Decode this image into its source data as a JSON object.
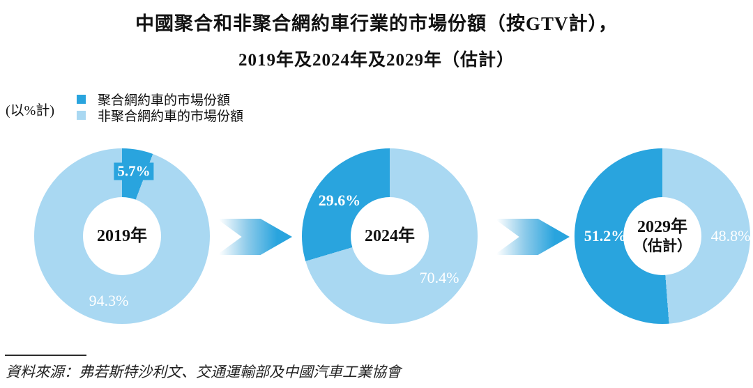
{
  "title": {
    "line1": "中國聚合和非聚合網約車行業的市場份額（按GTV計），",
    "line2": "2019年及2024年及2029年（估計）"
  },
  "legend": {
    "unit_note": "(以%計)",
    "items": [
      {
        "label": "聚合網約車的市場份額",
        "color": "#29A4DE"
      },
      {
        "label": "非聚合網約車的市場份額",
        "color": "#A9D8F2"
      }
    ]
  },
  "chart_data": {
    "type": "pie",
    "subtype": "donut-series",
    "title": "中國聚合和非聚合網約車行業的市場份額（按GTV計），2019年及2024年及2029年（估計）",
    "unit": "%",
    "legend_position": "top-left",
    "series_names": [
      "聚合網約車的市場份額",
      "非聚合網約車的市場份額"
    ],
    "colors": {
      "aggregated": "#29A4DE",
      "non_aggregated": "#A9D8F2"
    },
    "donuts": [
      {
        "center_label_line1": "2019年",
        "center_label_line2": "",
        "aggregated_value": 5.7,
        "non_aggregated_value": 94.3,
        "aggregated_label": "5.7%",
        "non_aggregated_label": "94.3%",
        "dark_slice_position": "start"
      },
      {
        "center_label_line1": "2024年",
        "center_label_line2": "",
        "aggregated_value": 29.6,
        "non_aggregated_value": 70.4,
        "aggregated_label": "29.6%",
        "non_aggregated_label": "70.4%",
        "dark_slice_position": "end"
      },
      {
        "center_label_line1": "2029年",
        "center_label_line2": "（估計）",
        "aggregated_value": 51.2,
        "non_aggregated_value": 48.8,
        "aggregated_label": "51.2%",
        "non_aggregated_label": "48.8%",
        "dark_slice_position": "end"
      }
    ]
  },
  "footer": {
    "source": "資料來源：弗若斯特沙利文、交通運輸部及中國汽車工業協會"
  }
}
